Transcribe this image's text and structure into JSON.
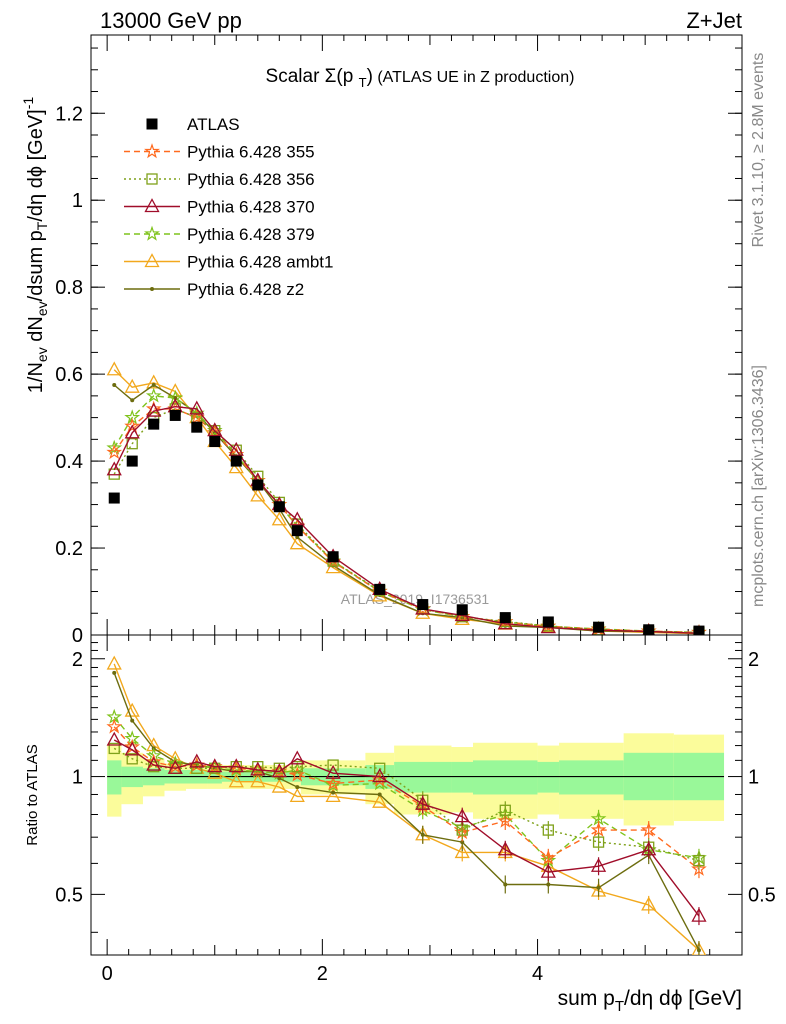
{
  "header": {
    "left": "13000 GeV pp",
    "right": "Z+Jet"
  },
  "side_text": {
    "top": "Rivet 3.1.10, ≥ 2.8M events",
    "bottom": "mcplots.cern.ch [arXiv:1306.3436]"
  },
  "watermark": "ATLAS_2019_I1736531",
  "colors": {
    "ATLAS": "#000000",
    "p355": "#ff6a1f",
    "p356": "#7fa11a",
    "p370": "#a00d2a",
    "p379": "#7fc31c",
    "ambt1": "#f2a81d",
    "z2": "#6d6d0f",
    "band_inner": "#99f899",
    "band_outer": "#fbfc9b"
  },
  "chart_data": [
    {
      "type": "line",
      "title": "Scalar Σ(p_T) (ATLAS UE in Z production)",
      "xlabel": "sum p_T/dη dφ [GeV]",
      "ylabel": "1/N_ev dN_ev/dsum p_T/dη dφ [GeV]^-1",
      "xlim": [
        -0.15,
        5.9
      ],
      "ylim": [
        0,
        1.38
      ],
      "yticks": [
        "0",
        "0.2",
        "0.4",
        "0.6",
        "0.8",
        "1",
        "1.2"
      ],
      "legend_position": "top-left",
      "x": [
        0.066,
        0.233,
        0.433,
        0.633,
        0.833,
        1.0,
        1.2,
        1.4,
        1.6,
        1.767,
        2.1,
        2.533,
        2.933,
        3.3,
        3.7,
        4.1,
        4.567,
        5.033,
        5.5
      ],
      "series": [
        {
          "name": "ATLAS",
          "values": [
            0.315,
            0.4,
            0.485,
            0.505,
            0.478,
            0.445,
            0.4,
            0.345,
            0.295,
            0.24,
            0.18,
            0.105,
            0.07,
            0.058,
            0.04,
            0.03,
            0.018,
            0.012,
            0.009
          ]
        },
        {
          "name": "Pythia 6.428 355",
          "values": [
            0.42,
            0.48,
            0.52,
            0.52,
            0.5,
            0.465,
            0.415,
            0.355,
            0.3,
            0.25,
            0.168,
            0.1,
            0.06,
            0.042,
            0.03,
            0.02,
            0.013,
            0.009,
            0.006
          ]
        },
        {
          "name": "Pythia 6.428 356",
          "values": [
            0.37,
            0.44,
            0.5,
            0.52,
            0.5,
            0.47,
            0.425,
            0.365,
            0.305,
            0.255,
            0.17,
            0.102,
            0.06,
            0.042,
            0.031,
            0.021,
            0.012,
            0.008,
            0.006
          ]
        },
        {
          "name": "Pythia 6.428 370",
          "values": [
            0.38,
            0.465,
            0.515,
            0.525,
            0.52,
            0.47,
            0.425,
            0.355,
            0.3,
            0.265,
            0.18,
            0.105,
            0.06,
            0.045,
            0.026,
            0.017,
            0.011,
            0.008,
            0.004
          ]
        },
        {
          "name": "Pythia 6.428 379",
          "values": [
            0.43,
            0.5,
            0.55,
            0.545,
            0.51,
            0.47,
            0.415,
            0.355,
            0.3,
            0.25,
            0.17,
            0.1,
            0.058,
            0.042,
            0.03,
            0.02,
            0.014,
            0.009,
            0.006
          ]
        },
        {
          "name": "Pythia 6.428 ambt1",
          "values": [
            0.61,
            0.57,
            0.58,
            0.56,
            0.5,
            0.445,
            0.385,
            0.32,
            0.265,
            0.21,
            0.155,
            0.09,
            0.05,
            0.036,
            0.025,
            0.018,
            0.009,
            0.006,
            0.003
          ]
        },
        {
          "name": "Pythia 6.428 z2",
          "values": [
            0.575,
            0.54,
            0.575,
            0.545,
            0.51,
            0.465,
            0.41,
            0.355,
            0.29,
            0.225,
            0.16,
            0.092,
            0.05,
            0.04,
            0.021,
            0.017,
            0.009,
            0.008,
            0.004
          ]
        }
      ]
    },
    {
      "type": "line",
      "title": "",
      "xlabel": "sum p_T/dη dφ [GeV]",
      "ylabel": "Ratio to ATLAS",
      "xlim": [
        -0.15,
        5.9
      ],
      "ylim": [
        0.35,
        2.3
      ],
      "xticks": [
        "0",
        "2",
        "4"
      ],
      "yticks": [
        "0.5",
        "1",
        "2"
      ],
      "x": [
        0.066,
        0.233,
        0.433,
        0.633,
        0.833,
        1.0,
        1.2,
        1.4,
        1.6,
        1.767,
        2.1,
        2.533,
        2.933,
        3.3,
        3.7,
        4.1,
        4.567,
        5.033,
        5.5
      ],
      "bands": {
        "edges": [
          0.0,
          0.133,
          0.333,
          0.533,
          0.733,
          0.933,
          1.067,
          1.333,
          1.467,
          1.733,
          1.8,
          2.4,
          2.667,
          3.2,
          3.4,
          4.0,
          4.2,
          4.8,
          5.267,
          5.733
        ],
        "inner_low": [
          0.9,
          0.94,
          0.95,
          0.96,
          0.96,
          0.96,
          0.97,
          0.97,
          0.97,
          0.97,
          0.95,
          0.93,
          0.91,
          0.91,
          0.9,
          0.91,
          0.9,
          0.87,
          0.87
        ],
        "inner_high": [
          1.1,
          1.06,
          1.05,
          1.04,
          1.04,
          1.04,
          1.03,
          1.03,
          1.03,
          1.03,
          1.05,
          1.07,
          1.09,
          1.09,
          1.1,
          1.09,
          1.1,
          1.15,
          1.15
        ],
        "outer_low": [
          0.79,
          0.85,
          0.89,
          0.92,
          0.93,
          0.93,
          0.93,
          0.93,
          0.93,
          0.93,
          0.9,
          0.85,
          0.8,
          0.81,
          0.78,
          0.8,
          0.78,
          0.75,
          0.77
        ],
        "outer_high": [
          1.21,
          1.15,
          1.11,
          1.08,
          1.07,
          1.07,
          1.07,
          1.07,
          1.07,
          1.07,
          1.1,
          1.15,
          1.2,
          1.19,
          1.22,
          1.2,
          1.22,
          1.29,
          1.28
        ]
      },
      "series": [
        {
          "name": "Pythia 6.428 355",
          "values": [
            1.34,
            1.19,
            1.09,
            1.06,
            1.07,
            1.06,
            1.05,
            1.04,
            1.03,
            1.01,
            0.96,
            0.98,
            0.84,
            0.72,
            0.77,
            0.62,
            0.73,
            0.73,
            0.58
          ]
        },
        {
          "name": "Pythia 6.428 356",
          "values": [
            1.18,
            1.11,
            1.06,
            1.05,
            1.05,
            1.05,
            1.06,
            1.06,
            1.05,
            1.06,
            1.07,
            1.05,
            0.87,
            0.73,
            0.82,
            0.73,
            0.68,
            0.66,
            0.61
          ]
        },
        {
          "name": "Pythia 6.428 370",
          "values": [
            1.24,
            1.17,
            1.07,
            1.05,
            1.09,
            1.06,
            1.06,
            1.04,
            1.03,
            1.11,
            1.02,
            1.0,
            0.85,
            0.79,
            0.65,
            0.57,
            0.59,
            0.65,
            0.44
          ]
        },
        {
          "name": "Pythia 6.428 379",
          "values": [
            1.42,
            1.25,
            1.13,
            1.08,
            1.07,
            1.05,
            1.04,
            1.03,
            1.02,
            1.04,
            0.95,
            0.96,
            0.82,
            0.74,
            0.8,
            0.61,
            0.78,
            0.65,
            0.62
          ]
        },
        {
          "name": "Pythia 6.428 ambt1",
          "values": [
            1.94,
            1.47,
            1.2,
            1.11,
            1.05,
            1.02,
            0.97,
            0.97,
            0.94,
            0.89,
            0.89,
            0.86,
            0.71,
            0.64,
            0.64,
            0.59,
            0.51,
            0.47,
            0.36
          ]
        },
        {
          "name": "Pythia 6.428 z2",
          "values": [
            1.84,
            1.39,
            1.18,
            1.09,
            1.07,
            1.05,
            1.03,
            1.03,
            0.99,
            0.94,
            0.91,
            0.9,
            0.71,
            0.68,
            0.53,
            0.53,
            0.52,
            0.63,
            0.36
          ]
        }
      ]
    }
  ]
}
